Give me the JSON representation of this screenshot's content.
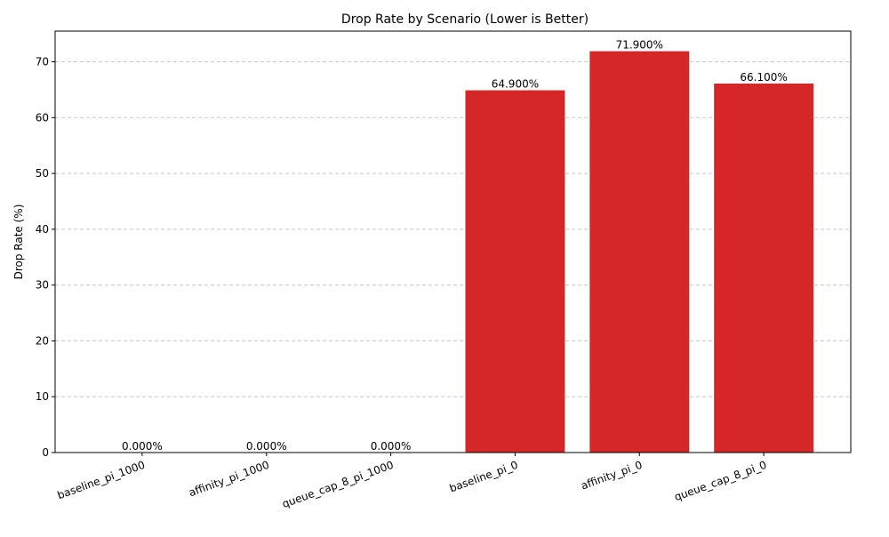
{
  "chart_data": {
    "type": "bar",
    "title": "Drop Rate by Scenario (Lower is Better)",
    "xlabel": "",
    "ylabel": "Drop Rate (%)",
    "categories": [
      "baseline_pi_1000",
      "affinity_pi_1000",
      "queue_cap_8_pi_1000",
      "baseline_pi_0",
      "affinity_pi_0",
      "queue_cap_8_pi_0"
    ],
    "values": [
      0.0,
      0.0,
      0.0,
      64.9,
      71.9,
      66.1
    ],
    "data_labels": [
      "0.000%",
      "0.000%",
      "0.000%",
      "64.900%",
      "71.900%",
      "66.100%"
    ],
    "ylim": [
      0,
      75.5
    ],
    "yticks": [
      0,
      10,
      20,
      30,
      40,
      50,
      60,
      70
    ],
    "ytick_labels": [
      "0",
      "10",
      "20",
      "30",
      "40",
      "50",
      "60",
      "70"
    ],
    "grid": "y-dashed",
    "bar_color": "#d62728",
    "grid_color": "#c8c8c8"
  }
}
